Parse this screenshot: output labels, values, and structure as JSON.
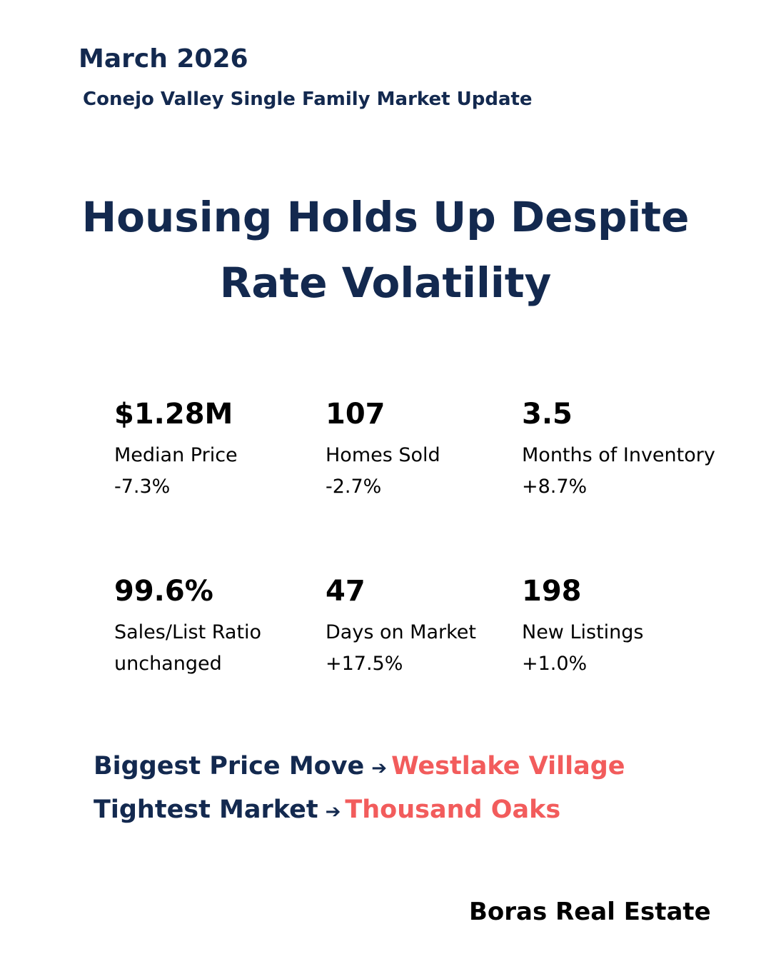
{
  "header": {
    "date": "March 2026",
    "subtitle": "Conejo Valley Single Family Market Update"
  },
  "headline": {
    "line1": "Housing Holds Up Despite",
    "line2": "Rate Volatility"
  },
  "stats": [
    {
      "value": "$1.28M",
      "label": "Median Price",
      "change": "-7.3%"
    },
    {
      "value": "107",
      "label": "Homes Sold",
      "change": "-2.7%"
    },
    {
      "value": "3.5",
      "label": "Months of Inventory",
      "change": "+8.7%"
    },
    {
      "value": "99.6%",
      "label": "Sales/List Ratio",
      "change": "unchanged"
    },
    {
      "value": "47",
      "label": "Days on Market",
      "change": "+17.5%"
    },
    {
      "value": "198",
      "label": "New Listings",
      "change": "+1.0%"
    }
  ],
  "highlights": {
    "biggest_price_move": {
      "label": "Biggest Price Move",
      "arrow": "➔",
      "place": "Westlake Village"
    },
    "tightest_market": {
      "label": "Tightest Market",
      "arrow": "➔",
      "place": "Thousand Oaks"
    }
  },
  "colors": {
    "navy": "#13294f",
    "accent_coral": "#f25c5c",
    "text": "#000000",
    "background": "#ffffff"
  },
  "footer": {
    "brand": "Boras Real Estate"
  }
}
